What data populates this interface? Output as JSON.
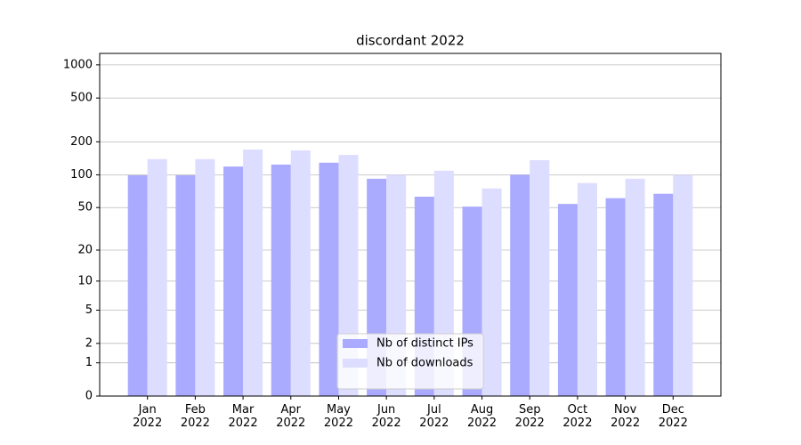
{
  "chart_data": {
    "type": "bar",
    "title": "discordant 2022",
    "categories": [
      "Jan\n2022",
      "Feb\n2022",
      "Mar\n2022",
      "Apr\n2022",
      "May\n2022",
      "Jun\n2022",
      "Jul\n2022",
      "Aug\n2022",
      "Sep\n2022",
      "Oct\n2022",
      "Nov\n2022",
      "Dec\n2022"
    ],
    "series": [
      {
        "name": "Nb of distinct IPs",
        "color": "#aaaaff",
        "values": [
          99,
          99,
          119,
          124,
          129,
          92,
          63,
          51,
          100,
          54,
          61,
          67
        ]
      },
      {
        "name": "Nb of downloads",
        "color": "#ddddff",
        "values": [
          139,
          139,
          170,
          167,
          152,
          100,
          109,
          75,
          136,
          84,
          92,
          100
        ]
      }
    ],
    "yscale": "log1p",
    "ylim": [
      0,
      1270
    ],
    "yticks": [
      0,
      1,
      2,
      5,
      10,
      20,
      50,
      100,
      200,
      500,
      1000
    ],
    "grid": true,
    "legend": "lower center"
  }
}
